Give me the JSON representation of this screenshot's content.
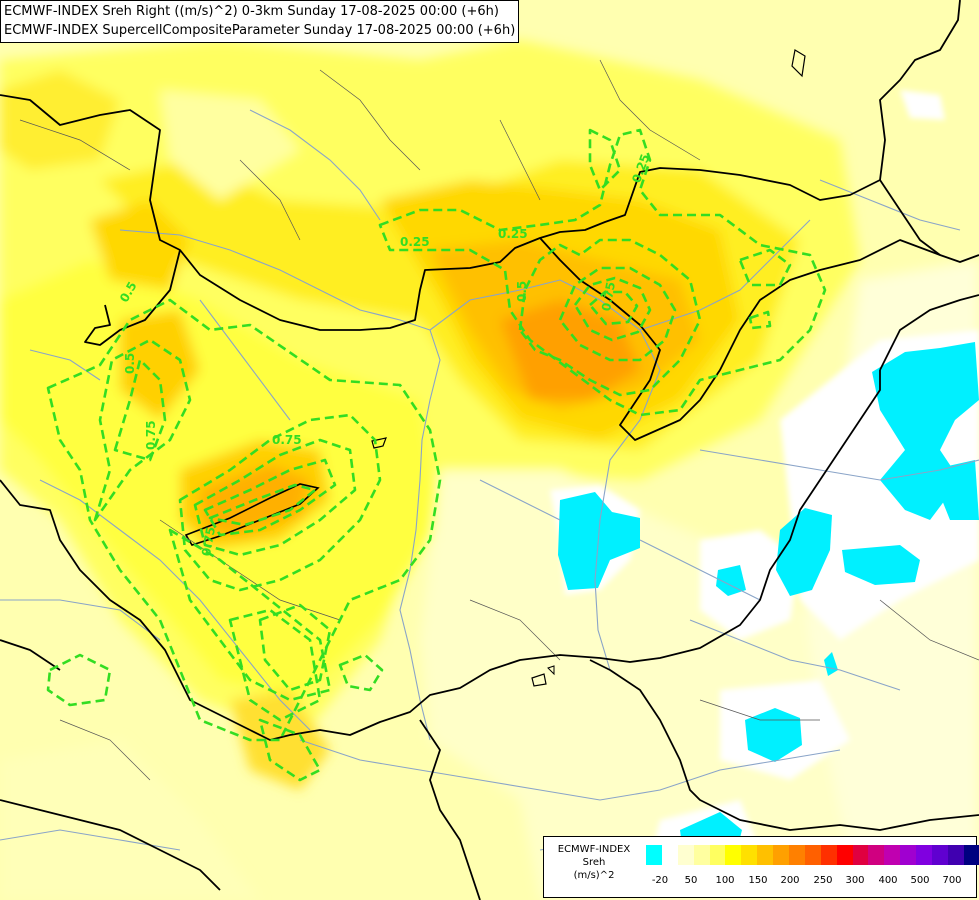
{
  "header": {
    "line1": "ECMWF-INDEX Sreh Right ((m/s)^2) 0-3km Sunday 17-08-2025 00:00 (+6h)",
    "line2": "ECMWF-INDEX SupercellCompositeParameter Sunday 17-08-2025 00:00 (+6h)"
  },
  "contour_labels": [
    "0.25",
    "0.25",
    "0.25",
    "0.5",
    "0.5",
    "0.75",
    "0.75",
    "0.75",
    "0.5",
    "0.75"
  ],
  "legend": {
    "title_lines": [
      "ECMWF-INDEX",
      "Sreh",
      "(m/s)^2"
    ],
    "colors": [
      "#00ffff",
      "#ffffff",
      "#ffffd0",
      "#ffffa0",
      "#ffff60",
      "#ffff00",
      "#ffe000",
      "#ffc000",
      "#ffa000",
      "#ff8000",
      "#ff6000",
      "#ff3000",
      "#ff0000",
      "#e00040",
      "#d00080",
      "#c000b0",
      "#a000d0",
      "#8000e0",
      "#6000d0",
      "#4000b0",
      "#000080"
    ],
    "tick_labels": [
      "-20",
      "50",
      "100",
      "150",
      "200",
      "250",
      "300",
      "400",
      "500",
      "700"
    ]
  },
  "colors": {
    "contour": "#33dd22",
    "border": "#000000",
    "river": "#8aa4c8",
    "water": "#7fb0e0"
  }
}
